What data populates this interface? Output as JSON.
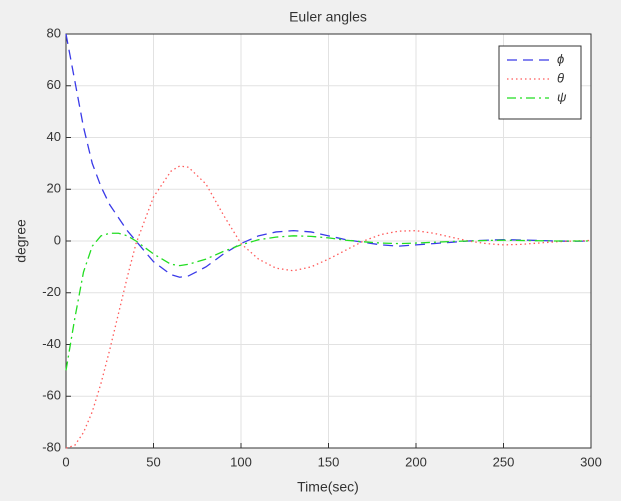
{
  "chart_data": {
    "type": "line",
    "title": "Euler angles",
    "x_label": "Time(sec)",
    "y_label": "degree",
    "x": [
      0,
      5,
      10,
      15,
      20,
      25,
      30,
      35,
      40,
      50,
      60,
      65,
      70,
      80,
      90,
      100,
      110,
      120,
      130,
      140,
      150,
      160,
      170,
      180,
      190,
      200,
      210,
      220,
      230,
      240,
      250,
      260,
      270,
      280,
      290,
      300
    ],
    "series": [
      {
        "name": "ϕ",
        "color": "#3a3ae8",
        "linestyle": "dashed",
        "values": [
          80,
          62,
          44,
          30,
          21,
          14,
          9,
          4,
          0,
          -8,
          -13,
          -14,
          -13.5,
          -10,
          -5,
          -1,
          2,
          3.5,
          4,
          3.5,
          2,
          0.5,
          -0.5,
          -1.5,
          -2,
          -1.5,
          -1,
          -0.5,
          0,
          0.3,
          0.5,
          0.4,
          0.2,
          0,
          -0.1,
          0
        ]
      },
      {
        "name": "θ",
        "color": "#ff5a5a",
        "linestyle": "dotted",
        "values": [
          -80,
          -79,
          -74,
          -66,
          -55,
          -42,
          -28,
          -14,
          -1,
          17,
          27,
          29,
          28.5,
          22,
          10,
          -1,
          -7,
          -10.5,
          -11.5,
          -10,
          -7,
          -3.5,
          0,
          2.5,
          3.8,
          4,
          3,
          1.5,
          0,
          -1,
          -1.5,
          -1.3,
          -0.8,
          -0.3,
          0,
          0.2
        ]
      },
      {
        "name": "ψ",
        "color": "#22dd22",
        "linestyle": "dashdot",
        "values": [
          -50,
          -30,
          -12,
          -2,
          2,
          3,
          3,
          2,
          0,
          -5,
          -9,
          -9.5,
          -9,
          -7,
          -4,
          -1.5,
          0.5,
          1.5,
          2,
          1.8,
          1.2,
          0.3,
          -0.3,
          -0.8,
          -1,
          -0.8,
          -0.5,
          -0.2,
          0,
          0.2,
          0.3,
          0.2,
          0.1,
          0,
          0,
          0
        ]
      }
    ],
    "xlim": [
      0,
      300
    ],
    "xticks": [
      0,
      50,
      100,
      150,
      200,
      250,
      300
    ],
    "ylim": [
      -80,
      80
    ],
    "yticks": [
      -80,
      -60,
      -40,
      -20,
      0,
      20,
      40,
      60,
      80
    ],
    "grid": true,
    "legend": "top-right"
  }
}
